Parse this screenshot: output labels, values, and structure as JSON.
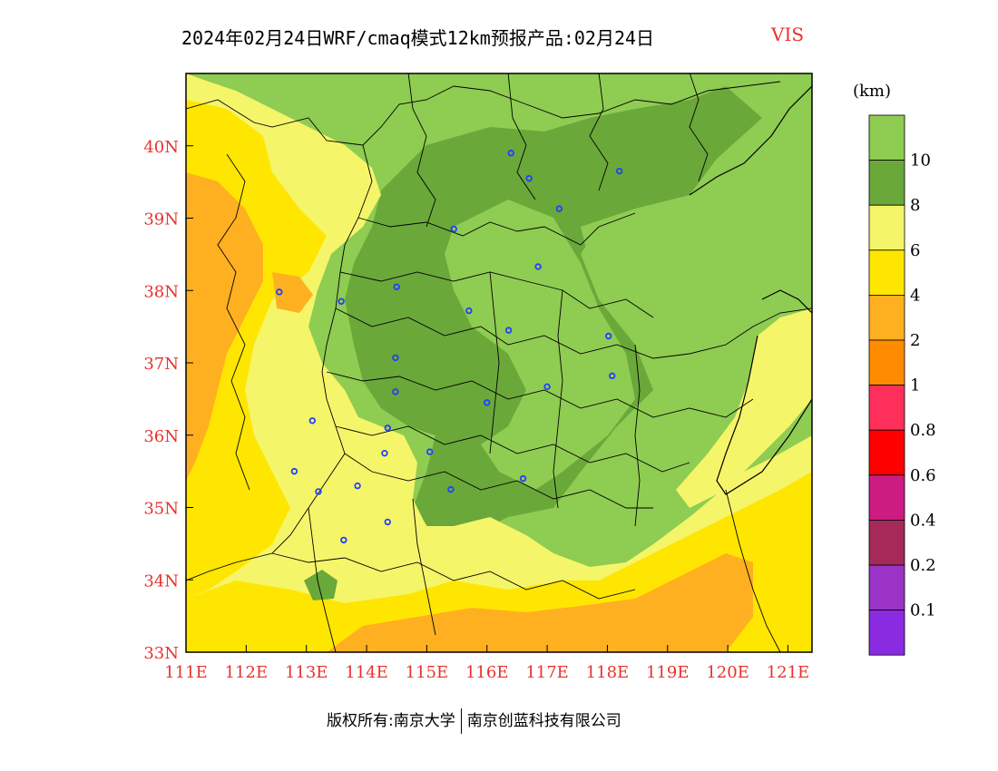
{
  "header": {
    "title": "2024年02月24日WRF/cmaq模式12km预报产品:02月24日",
    "variable": "VIS",
    "variable_color": "#e8322c"
  },
  "axes": {
    "lon_labels": [
      "111E",
      "112E",
      "113E",
      "114E",
      "115E",
      "116E",
      "117E",
      "118E",
      "119E",
      "120E",
      "121E"
    ],
    "lon_values": [
      111,
      112,
      113,
      114,
      115,
      116,
      117,
      118,
      119,
      120,
      121
    ],
    "lat_labels": [
      "40N",
      "39N",
      "38N",
      "37N",
      "36N",
      "35N",
      "34N",
      "33N"
    ],
    "lat_values": [
      40,
      39,
      38,
      37,
      36,
      35,
      34,
      33
    ],
    "lon_range": [
      111,
      121.4
    ],
    "lat_range": [
      33,
      41
    ]
  },
  "legend": {
    "unit": "(km)",
    "levels": [
      {
        "label": "10",
        "color": "#8fcc52"
      },
      {
        "label": "8",
        "color": "#6aa83a"
      },
      {
        "label": "6",
        "color": "#f5f56a"
      },
      {
        "label": "4",
        "color": "#ffe600"
      },
      {
        "label": "2",
        "color": "#ffb020"
      },
      {
        "label": "1",
        "color": "#ff8c00"
      },
      {
        "label": "0.8",
        "color": "#ff2f5c"
      },
      {
        "label": "0.6",
        "color": "#ff0000"
      },
      {
        "label": "0.4",
        "color": "#cc1c82"
      },
      {
        "label": "0.2",
        "color": "#a52a5a"
      },
      {
        "label": "0.1",
        "color": "#9b34c6"
      },
      {
        "label": "",
        "color": "#8a2be2"
      }
    ]
  },
  "cities": [
    {
      "lon": 116.4,
      "lat": 39.9
    },
    {
      "lon": 116.7,
      "lat": 39.55
    },
    {
      "lon": 118.2,
      "lat": 39.65
    },
    {
      "lon": 117.2,
      "lat": 39.13
    },
    {
      "lon": 115.45,
      "lat": 38.85
    },
    {
      "lon": 116.85,
      "lat": 38.33
    },
    {
      "lon": 114.5,
      "lat": 38.05
    },
    {
      "lon": 112.55,
      "lat": 37.98
    },
    {
      "lon": 113.58,
      "lat": 37.85
    },
    {
      "lon": 115.7,
      "lat": 37.72
    },
    {
      "lon": 116.36,
      "lat": 37.45
    },
    {
      "lon": 118.02,
      "lat": 37.37
    },
    {
      "lon": 114.48,
      "lat": 37.07
    },
    {
      "lon": 114.48,
      "lat": 36.6
    },
    {
      "lon": 117.0,
      "lat": 36.67
    },
    {
      "lon": 118.08,
      "lat": 36.82
    },
    {
      "lon": 116.0,
      "lat": 36.45
    },
    {
      "lon": 113.1,
      "lat": 36.2
    },
    {
      "lon": 114.35,
      "lat": 36.1
    },
    {
      "lon": 114.3,
      "lat": 35.75
    },
    {
      "lon": 115.05,
      "lat": 35.77
    },
    {
      "lon": 112.8,
      "lat": 35.5
    },
    {
      "lon": 113.2,
      "lat": 35.22
    },
    {
      "lon": 113.85,
      "lat": 35.3
    },
    {
      "lon": 116.6,
      "lat": 35.4
    },
    {
      "lon": 115.4,
      "lat": 35.25
    },
    {
      "lon": 114.35,
      "lat": 34.8
    },
    {
      "lon": 113.62,
      "lat": 34.55
    }
  ],
  "footer": {
    "copyright": "版权所有:南京大学",
    "company": "南京创蓝科技有限公司"
  }
}
